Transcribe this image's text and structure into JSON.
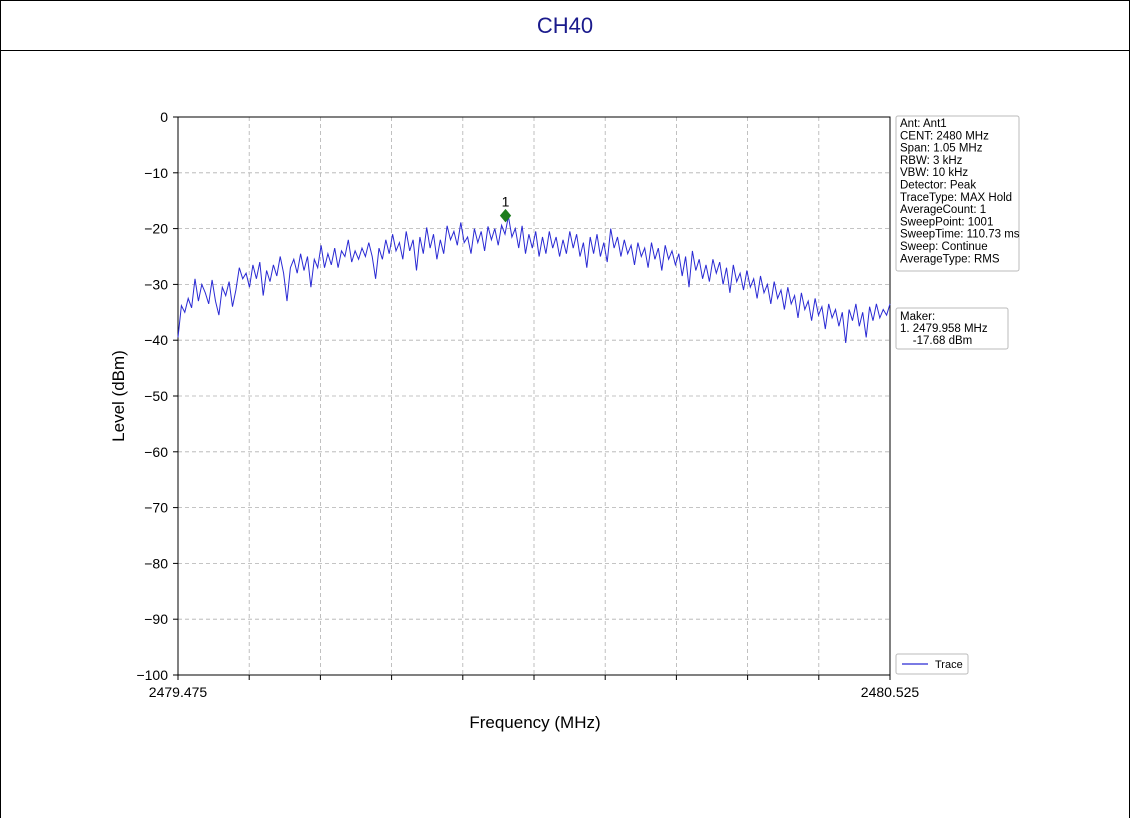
{
  "window": {
    "title": "CH40"
  },
  "chart_data": {
    "type": "line",
    "title": "CH40",
    "xlabel": "Frequency (MHz)",
    "ylabel": "Level (dBm)",
    "xlim": [
      2479.475,
      2480.525
    ],
    "ylim": [
      -100,
      0
    ],
    "x_tick_labels": [
      "2479.475",
      "2480.525"
    ],
    "y_ticks": [
      0,
      -10,
      -20,
      -30,
      -40,
      -50,
      -60,
      -70,
      -80,
      -90,
      -100
    ],
    "grid": true,
    "legend_position": "bottom-right",
    "series": [
      {
        "name": "Trace",
        "color": "#2a2ad4",
        "x_start": 2479.475,
        "x_end": 2480.525,
        "values": [
          -39.5,
          -33.8,
          -35.0,
          -32.5,
          -34.2,
          -29.0,
          -33.0,
          -30.0,
          -31.5,
          -33.5,
          -29.2,
          -33.0,
          -35.5,
          -30.5,
          -32.0,
          -29.5,
          -34.0,
          -31.0,
          -27.0,
          -29.0,
          -28.0,
          -30.5,
          -26.5,
          -29.0,
          -26.0,
          -32.0,
          -27.5,
          -29.5,
          -26.5,
          -28.5,
          -25.0,
          -28.0,
          -33.0,
          -27.0,
          -25.5,
          -28.0,
          -24.5,
          -27.5,
          -25.0,
          -30.5,
          -25.5,
          -27.0,
          -23.0,
          -27.0,
          -24.5,
          -26.5,
          -23.5,
          -27.0,
          -24.0,
          -25.0,
          -22.0,
          -26.0,
          -24.0,
          -25.5,
          -23.5,
          -25.0,
          -22.5,
          -25.0,
          -29.0,
          -23.5,
          -25.5,
          -22.0,
          -24.5,
          -21.0,
          -24.0,
          -22.5,
          -25.5,
          -20.5,
          -24.0,
          -22.0,
          -27.5,
          -21.5,
          -24.5,
          -19.8,
          -23.5,
          -21.0,
          -25.5,
          -22.0,
          -24.5,
          -19.5,
          -22.0,
          -20.5,
          -23.0,
          -18.9,
          -22.5,
          -21.5,
          -24.5,
          -20.0,
          -22.5,
          -20.5,
          -24.0,
          -19.6,
          -22.0,
          -20.0,
          -23.0,
          -19.4,
          -21.0,
          -17.8,
          -21.5,
          -20.0,
          -23.5,
          -19.5,
          -24.5,
          -21.0,
          -23.5,
          -20.5,
          -25.0,
          -21.5,
          -24.5,
          -20.5,
          -23.5,
          -21.5,
          -25.0,
          -22.0,
          -24.5,
          -20.5,
          -23.5,
          -21.0,
          -25.0,
          -22.5,
          -27.0,
          -21.5,
          -24.5,
          -21.0,
          -25.0,
          -22.5,
          -26.0,
          -20.0,
          -23.5,
          -21.5,
          -25.0,
          -22.0,
          -24.5,
          -23.0,
          -26.5,
          -22.5,
          -25.0,
          -23.5,
          -27.0,
          -22.5,
          -25.5,
          -23.5,
          -27.5,
          -23.0,
          -25.5,
          -24.0,
          -26.5,
          -24.5,
          -28.5,
          -25.0,
          -30.5,
          -24.0,
          -27.5,
          -25.5,
          -29.0,
          -26.5,
          -29.5,
          -25.5,
          -28.0,
          -26.0,
          -30.0,
          -27.0,
          -31.5,
          -26.5,
          -29.5,
          -28.0,
          -31.0,
          -27.5,
          -30.5,
          -29.0,
          -32.5,
          -28.5,
          -31.5,
          -30.0,
          -33.5,
          -29.5,
          -32.5,
          -31.0,
          -34.5,
          -30.5,
          -33.5,
          -32.0,
          -36.0,
          -31.5,
          -34.5,
          -33.0,
          -36.5,
          -32.5,
          -35.5,
          -34.0,
          -38.0,
          -33.5,
          -36.0,
          -34.5,
          -37.5,
          -35.0,
          -40.5,
          -34.5,
          -36.5,
          -33.5,
          -37.5,
          -35.0,
          -39.5,
          -34.0,
          -36.5,
          -33.5,
          -36.0,
          -34.5,
          -35.5,
          -33.5
        ]
      }
    ],
    "marker": {
      "label": "1",
      "x": 2479.958,
      "y": -17.68,
      "color": "#1e7d1e"
    }
  },
  "info_box": {
    "lines": [
      "Ant: Ant1",
      "CENT: 2480 MHz",
      "Span: 1.05 MHz",
      "RBW: 3 kHz",
      "VBW: 10 kHz",
      "Detector: Peak",
      "TraceType: MAX Hold",
      "AverageCount: 1",
      "SweepPoint: 1001",
      "SweepTime: 110.73 ms",
      "Sweep: Continue",
      "AverageType: RMS"
    ]
  },
  "marker_box": {
    "lines": [
      "Maker:",
      "1. 2479.958 MHz",
      "    -17.68 dBm"
    ]
  },
  "legend": {
    "label": "Trace"
  }
}
